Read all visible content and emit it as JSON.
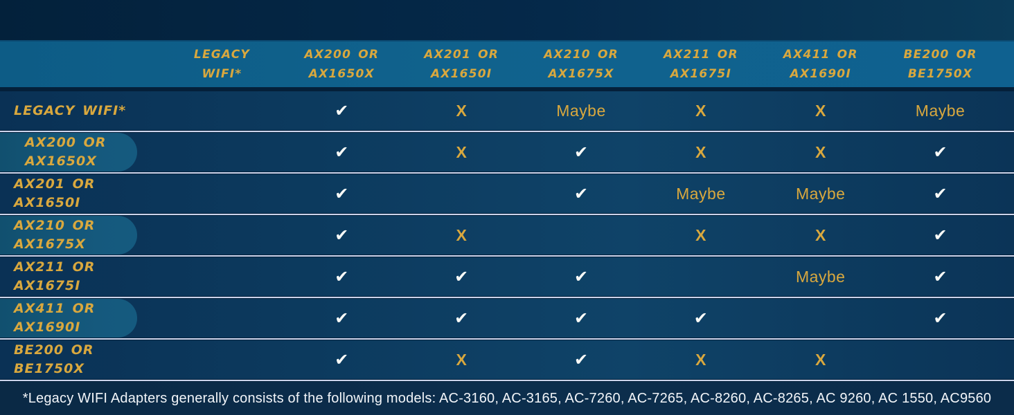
{
  "table": {
    "columns": [
      {
        "id": "legacy",
        "line1": "LEGACY",
        "line2": "WIFI*"
      },
      {
        "id": "ax200",
        "line1": "AX200 OR",
        "line2": "AX1650X"
      },
      {
        "id": "ax201",
        "line1": "AX201 OR",
        "line2": "AX1650I"
      },
      {
        "id": "ax210",
        "line1": "AX210 OR",
        "line2": "AX1675X"
      },
      {
        "id": "ax211",
        "line1": "AX211 OR",
        "line2": "AX1675I"
      },
      {
        "id": "ax411",
        "line1": "AX411 OR",
        "line2": "AX1690I"
      },
      {
        "id": "be200",
        "line1": "BE200 OR",
        "line2": "BE1750X"
      }
    ],
    "rows": [
      {
        "id": "legacy",
        "label_line1": "LEGACY WIFI*",
        "label_line2": "",
        "pill": false,
        "label_indent": false,
        "cells": [
          "",
          "check",
          "x",
          "maybe",
          "x",
          "x",
          "maybe"
        ]
      },
      {
        "id": "ax200",
        "label_line1": "AX200 OR",
        "label_line2": "AX1650X",
        "pill": true,
        "label_indent": true,
        "cells": [
          "",
          "check",
          "x",
          "check",
          "x",
          "x",
          "check"
        ]
      },
      {
        "id": "ax201",
        "label_line1": "AX201 OR",
        "label_line2": "AX1650I",
        "pill": false,
        "label_indent": false,
        "cells": [
          "",
          "check",
          "",
          "check",
          "maybe",
          "maybe",
          "check"
        ]
      },
      {
        "id": "ax210",
        "label_line1": "AX210 OR",
        "label_line2": "AX1675X",
        "pill": true,
        "label_indent": false,
        "cells": [
          "",
          "check",
          "x",
          "",
          "x",
          "x",
          "check"
        ]
      },
      {
        "id": "ax211",
        "label_line1": "AX211 OR",
        "label_line2": "AX1675I",
        "pill": false,
        "label_indent": false,
        "cells": [
          "",
          "check",
          "check",
          "check",
          "",
          "maybe",
          "check"
        ]
      },
      {
        "id": "ax411",
        "label_line1": "AX411 OR",
        "label_line2": "AX1690I",
        "pill": true,
        "label_indent": false,
        "cells": [
          "",
          "check",
          "check",
          "check",
          "check",
          "",
          "check"
        ]
      },
      {
        "id": "be200",
        "label_line1": "BE200 OR",
        "label_line2": "BE1750X",
        "pill": false,
        "label_indent": false,
        "cells": [
          "",
          "check",
          "x",
          "check",
          "x",
          "x",
          ""
        ]
      }
    ]
  },
  "symbols": {
    "check": "✔",
    "x": "X",
    "maybe": "Maybe"
  },
  "footnote": "*Legacy WIFI Adapters generally consists of the following models: AC-3160, AC-3165, AC-7260, AC-7265, AC-8260, AC-8265, AC 9260, AC 1550, AC9560",
  "palette": {
    "gold": "#d9a83e",
    "check_white": "#fbfcf8",
    "header_band": "#10628d",
    "row_bg": "#0c3a5e",
    "pill_bg": "#155a7d",
    "page_bg": "#04203a",
    "footer_bg": "#0c2e4d",
    "separator_line": "#ccd4ec"
  }
}
